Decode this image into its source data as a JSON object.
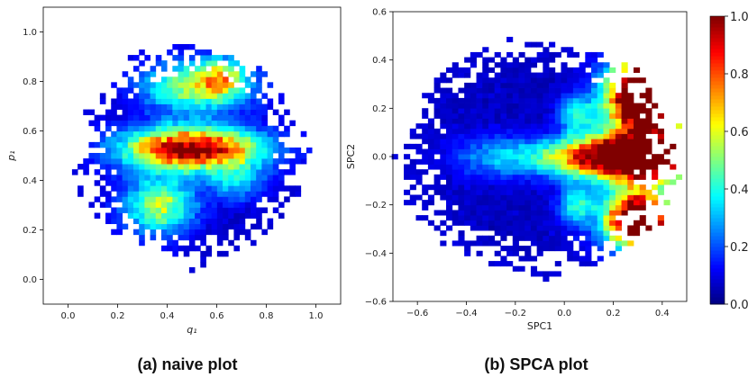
{
  "captions": {
    "a": "(a) naive plot",
    "b": "(b) SPCA plot"
  },
  "chart_data": [
    {
      "type": "heatmap",
      "title": "",
      "xlabel": "q₁",
      "ylabel": "p₁",
      "xlim": [
        -0.1,
        1.1
      ],
      "ylim": [
        -0.1,
        1.1
      ],
      "xticks": [
        "0.0",
        "0.2",
        "0.4",
        "0.6",
        "0.8",
        "1.0"
      ],
      "yticks": [
        "0.0",
        "0.2",
        "0.4",
        "0.6",
        "0.8",
        "1.0"
      ],
      "xtick_values": [
        0.0,
        0.2,
        0.4,
        0.6,
        0.8,
        1.0
      ],
      "ytick_values": [
        0.0,
        0.2,
        0.4,
        0.6,
        0.8,
        1.0
      ],
      "grid": false,
      "colormap": "jet",
      "clim": [
        0.0,
        1.0
      ],
      "density_blobs": [
        {
          "cx": 0.5,
          "cy": 0.53,
          "sx": 0.19,
          "sy": 0.06,
          "amp": 0.95
        },
        {
          "cx": 0.52,
          "cy": 0.78,
          "sx": 0.15,
          "sy": 0.07,
          "amp": 0.5
        },
        {
          "cx": 0.62,
          "cy": 0.82,
          "sx": 0.06,
          "sy": 0.05,
          "amp": 0.35
        },
        {
          "cx": 0.37,
          "cy": 0.3,
          "sx": 0.1,
          "sy": 0.08,
          "amp": 0.5
        },
        {
          "cx": 0.68,
          "cy": 0.4,
          "sx": 0.08,
          "sy": 0.06,
          "amp": 0.25
        }
      ],
      "support_ellipse": {
        "cx": 0.5,
        "cy": 0.5,
        "rx": 0.44,
        "ry": 0.43
      },
      "bins": 43
    },
    {
      "type": "heatmap",
      "title": "",
      "xlabel": "SPC1",
      "ylabel": "SPC2",
      "xlim": [
        -0.7,
        0.5
      ],
      "ylim": [
        -0.6,
        0.6
      ],
      "xticks": [
        "−0.6",
        "−0.4",
        "−0.2",
        "0.0",
        "0.2",
        "0.4"
      ],
      "yticks": [
        "−0.6",
        "−0.4",
        "−0.2",
        "0.0",
        "0.2",
        "0.4",
        "0.6"
      ],
      "xtick_values": [
        -0.6,
        -0.4,
        -0.2,
        0.0,
        0.2,
        0.4
      ],
      "ytick_values": [
        -0.6,
        -0.4,
        -0.2,
        0.0,
        0.2,
        0.4,
        0.6
      ],
      "grid": false,
      "colormap": "jet",
      "clim": [
        0.0,
        1.0
      ],
      "density_blobs": [
        {
          "cx": 0.32,
          "cy": 0.0,
          "sx": 0.16,
          "sy": 0.07,
          "amp": 1.4
        },
        {
          "cx": 0.33,
          "cy": 0.25,
          "sx": 0.1,
          "sy": 0.1,
          "amp": 1.6
        },
        {
          "cx": 0.3,
          "cy": -0.26,
          "sx": 0.09,
          "sy": 0.08,
          "amp": 1.3
        },
        {
          "cx": 0.05,
          "cy": 0.0,
          "sx": 0.12,
          "sy": 0.05,
          "amp": 0.45
        },
        {
          "cx": 0.05,
          "cy": 0.18,
          "sx": 0.05,
          "sy": 0.05,
          "amp": 0.35
        },
        {
          "cx": 0.05,
          "cy": -0.2,
          "sx": 0.05,
          "sy": 0.06,
          "amp": 0.35
        },
        {
          "cx": -0.25,
          "cy": 0.0,
          "sx": 0.14,
          "sy": 0.06,
          "amp": 0.25
        }
      ],
      "support_ellipse": {
        "cx": -0.1,
        "cy": 0.0,
        "rx": 0.55,
        "ry": 0.47
      },
      "bins": 49
    }
  ],
  "colorbar": {
    "ticks": [
      "0.0",
      "0.2",
      "0.4",
      "0.6",
      "0.8",
      "1.0"
    ],
    "tick_values": [
      0.0,
      0.2,
      0.4,
      0.6,
      0.8,
      1.0
    ],
    "range": [
      0.0,
      1.0
    ]
  }
}
